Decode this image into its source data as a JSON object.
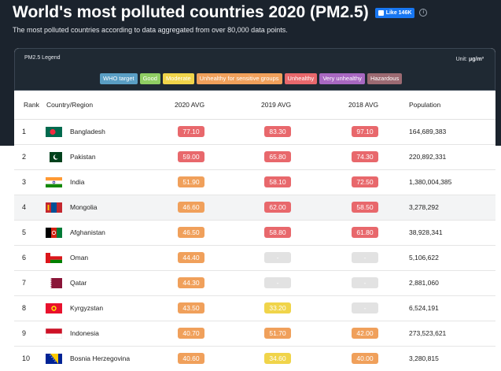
{
  "header": {
    "title": "World's most polluted countries 2020 (PM2.5)",
    "like_label": "Like 146K",
    "subtitle": "The most polluted countries according to data aggregated from over 80,000 data points."
  },
  "legend": {
    "title": "PM2.5 Legend",
    "unit_label": "Unit:",
    "unit_value": "μg/m³",
    "items": [
      {
        "label": "WHO target",
        "color": "#5a9ec4"
      },
      {
        "label": "Good",
        "color": "#8fcd63"
      },
      {
        "label": "Moderate",
        "color": "#f0d44a"
      },
      {
        "label": "Unhealthy for sensitive groups",
        "color": "#f0a05b"
      },
      {
        "label": "Unhealthy",
        "color": "#e8686c"
      },
      {
        "label": "Very unhealthy",
        "color": "#a868c1"
      },
      {
        "label": "Hazardous",
        "color": "#9c6a72"
      }
    ]
  },
  "table": {
    "columns": {
      "rank": "Rank",
      "country": "Country/Region",
      "avg2020": "2020 AVG",
      "avg2019": "2019 AVG",
      "avg2018": "2018 AVG",
      "population": "Population"
    },
    "rows": [
      {
        "rank": "1",
        "country": "Bangladesh",
        "flag": "bangladesh",
        "v2020": "77.10",
        "v2019": "83.30",
        "v2018": "97.10",
        "population": "164,689,383"
      },
      {
        "rank": "2",
        "country": "Pakistan",
        "flag": "pakistan",
        "v2020": "59.00",
        "v2019": "65.80",
        "v2018": "74.30",
        "population": "220,892,331"
      },
      {
        "rank": "3",
        "country": "India",
        "flag": "india",
        "v2020": "51.90",
        "v2019": "58.10",
        "v2018": "72.50",
        "population": "1,380,004,385"
      },
      {
        "rank": "4",
        "country": "Mongolia",
        "flag": "mongolia",
        "v2020": "46.60",
        "v2019": "62.00",
        "v2018": "58.50",
        "population": "3,278,292"
      },
      {
        "rank": "5",
        "country": "Afghanistan",
        "flag": "afghanistan",
        "v2020": "46.50",
        "v2019": "58.80",
        "v2018": "61.80",
        "population": "38,928,341"
      },
      {
        "rank": "6",
        "country": "Oman",
        "flag": "oman",
        "v2020": "44.40",
        "v2019": "-",
        "v2018": "-",
        "population": "5,106,622"
      },
      {
        "rank": "7",
        "country": "Qatar",
        "flag": "qatar",
        "v2020": "44.30",
        "v2019": "-",
        "v2018": "-",
        "population": "2,881,060"
      },
      {
        "rank": "8",
        "country": "Kyrgyzstan",
        "flag": "kyrgyzstan",
        "v2020": "43.50",
        "v2019": "33.20",
        "v2018": "-",
        "population": "6,524,191"
      },
      {
        "rank": "9",
        "country": "Indonesia",
        "flag": "indonesia",
        "v2020": "40.70",
        "v2019": "51.70",
        "v2018": "42.00",
        "population": "273,523,621"
      },
      {
        "rank": "10",
        "country": "Bosnia Herzegovina",
        "flag": "bosnia",
        "v2020": "40.60",
        "v2019": "34.60",
        "v2018": "40.00",
        "population": "3,280,815"
      }
    ]
  }
}
